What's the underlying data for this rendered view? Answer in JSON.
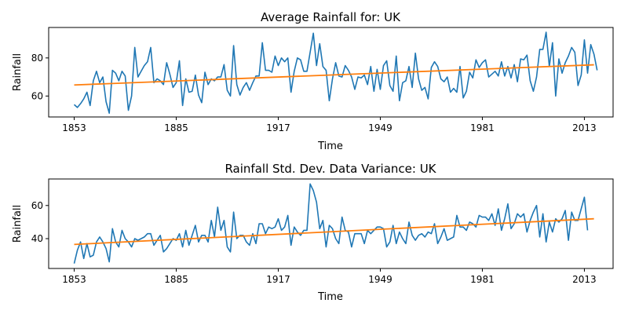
{
  "colors": {
    "series_raw": "#1f77b4",
    "series_trend": "#ff7f0e"
  },
  "chart_data": [
    {
      "type": "line",
      "title": "Average Rainfall for: UK",
      "xlabel": "Time",
      "ylabel": "Rainfall",
      "xlim": [
        1845,
        2022
      ],
      "ylim": [
        49,
        96
      ],
      "xticks": [
        1853,
        1885,
        1917,
        1949,
        1981,
        2013
      ],
      "yticks": [
        60,
        80
      ],
      "grid": false,
      "series": [
        {
          "style": "raw",
          "x_start": 1853,
          "values": [
            55.5,
            54,
            56,
            58.5,
            62,
            55,
            68,
            73,
            67,
            70,
            57,
            51,
            73.5,
            72,
            68,
            73,
            70.5,
            52.5,
            60,
            85.5,
            70,
            73,
            76,
            78,
            85.5,
            67,
            69,
            68,
            66,
            77.5,
            71.5,
            64.5,
            67,
            78.5,
            55,
            69,
            62,
            62.5,
            71,
            60.5,
            56.5,
            72.5,
            66,
            69,
            68,
            70,
            70,
            76.5,
            63,
            60,
            86.5,
            66,
            60.5,
            64.5,
            67,
            63,
            67,
            70.5,
            70.5,
            88,
            73.5,
            73.5,
            72.5,
            81,
            76,
            80,
            78,
            80,
            62,
            73,
            80,
            79,
            73,
            73,
            83,
            93,
            76,
            87.5,
            75.5,
            73.5,
            57.5,
            69,
            77.5,
            70.5,
            70,
            76,
            73.5,
            70,
            63.5,
            70,
            69.5,
            71,
            66,
            75.5,
            62.5,
            74,
            63.5,
            76,
            78.5,
            65.5,
            62.5,
            81,
            57.5,
            67,
            68,
            75.5,
            64.5,
            82.5,
            69,
            63,
            64.5,
            58.5,
            75,
            78,
            75.5,
            69,
            67.5,
            70,
            62,
            64,
            62,
            75.5,
            59,
            62.5,
            72.5,
            69.5,
            79,
            75,
            77.5,
            79,
            70,
            71.5,
            73,
            70.5,
            78,
            70.5,
            75.5,
            69.5,
            76.5,
            67.5,
            79.5,
            79,
            81.5,
            68,
            62.5,
            70,
            84.5,
            84.5,
            93.5,
            75.5,
            88,
            60,
            79.5,
            72,
            77.5,
            81,
            85.5,
            83,
            65.5,
            71,
            89.5,
            72,
            87,
            82,
            73.5
          ]
        },
        {
          "style": "trend",
          "x": [
            1853,
            2016
          ],
          "y": [
            65.8,
            76.4
          ]
        }
      ]
    },
    {
      "type": "line",
      "title": "Rainfall Std. Dev. Data Variance: UK",
      "xlabel": "Time",
      "ylabel": "Rainfall",
      "xlim": [
        1845,
        2022
      ],
      "ylim": [
        22,
        76
      ],
      "xticks": [
        1853,
        1885,
        1917,
        1949,
        1981,
        2013
      ],
      "yticks": [
        40,
        60
      ],
      "grid": false,
      "series": [
        {
          "style": "raw",
          "x_start": 1853,
          "values": [
            25,
            33,
            38,
            28,
            37,
            29,
            30,
            38,
            41,
            38,
            34,
            26,
            46,
            38,
            35,
            45,
            40,
            38,
            35,
            40,
            39,
            40,
            41,
            43,
            43,
            36,
            39,
            42,
            32,
            34,
            37,
            40,
            39,
            43,
            35,
            45,
            36,
            42,
            48,
            38,
            42,
            42,
            38,
            51,
            41,
            59,
            45,
            51,
            35,
            32,
            56,
            40,
            42,
            42,
            38,
            36,
            43,
            37,
            49,
            49,
            43,
            47,
            46,
            47,
            52,
            45,
            47,
            54,
            36,
            47,
            44,
            42,
            45,
            45,
            73,
            69,
            62,
            46,
            51,
            35,
            48,
            46,
            40,
            37,
            53,
            45,
            44,
            35,
            43,
            43,
            43,
            37,
            45,
            43,
            45,
            47,
            47,
            46,
            35,
            38,
            48,
            37,
            44,
            40,
            37,
            50,
            42,
            39,
            42,
            43,
            41,
            44,
            43,
            49,
            37,
            41,
            46,
            39,
            40,
            41,
            54,
            47,
            47,
            45,
            50,
            49,
            47,
            54,
            53,
            53,
            51,
            55,
            48,
            58,
            45,
            52,
            61,
            46,
            49,
            55,
            53,
            55,
            44,
            51,
            56,
            60,
            41,
            55,
            38,
            50,
            44,
            52,
            50,
            52,
            57,
            39,
            56,
            51,
            51,
            58,
            65,
            45
          ]
        },
        {
          "style": "trend",
          "x": [
            1853,
            2016
          ],
          "y": [
            36.5,
            52
          ]
        }
      ]
    }
  ]
}
